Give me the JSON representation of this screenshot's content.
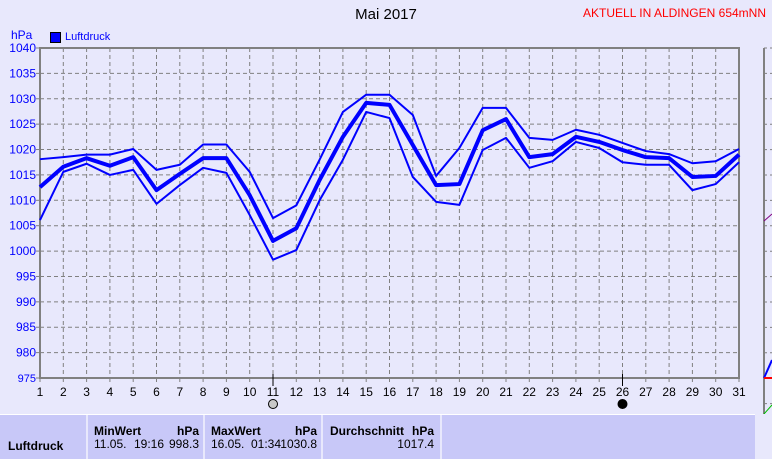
{
  "header": {
    "title": "Mai 2017",
    "station": "AKTUELL IN ALDINGEN 654mNN",
    "unit": "hPa"
  },
  "legend": {
    "label": "Luftdruck",
    "color": "#0000ff"
  },
  "chart_data": {
    "type": "line",
    "title": "Mai 2017",
    "ylabel": "hPa",
    "ylim": [
      975,
      1040
    ],
    "yticks": [
      975,
      980,
      985,
      990,
      995,
      1000,
      1005,
      1010,
      1015,
      1020,
      1025,
      1030,
      1035,
      1040
    ],
    "x": [
      1,
      2,
      3,
      4,
      5,
      6,
      7,
      8,
      9,
      10,
      11,
      12,
      13,
      14,
      15,
      16,
      17,
      18,
      19,
      20,
      21,
      22,
      23,
      24,
      25,
      26,
      27,
      28,
      29,
      30,
      31
    ],
    "grid": true,
    "legend_position": "top-left",
    "markers": [
      {
        "day": 11,
        "type": "hollow-circle"
      },
      {
        "day": 26,
        "type": "filled-circle"
      }
    ],
    "series": [
      {
        "name": "Luftdruck",
        "role": "max",
        "color": "#0000ff",
        "values": [
          1018.1,
          1018.5,
          1019,
          1019,
          1020.1,
          1016,
          1017,
          1021,
          1021,
          1015.6,
          1006.5,
          1009,
          1018,
          1027.4,
          1030.8,
          1030.8,
          1026.8,
          1014.8,
          1020.3,
          1028.2,
          1028.2,
          1022.3,
          1021.9,
          1023.9,
          1022.9,
          1021.3,
          1019.7,
          1019.1,
          1017.3,
          1017.7,
          1020.1
        ]
      },
      {
        "name": "Luftdruck",
        "role": "mean",
        "color": "#0000ff",
        "values": [
          1012.6,
          1016.6,
          1018.3,
          1016.8,
          1018.5,
          1012,
          1015.2,
          1018.3,
          1018.3,
          1011,
          1002,
          1004.5,
          1014,
          1022.5,
          1029.2,
          1028.8,
          1020.9,
          1013,
          1013.2,
          1023.8,
          1026,
          1018.5,
          1019.1,
          1022.5,
          1021.5,
          1019.9,
          1018.5,
          1018.3,
          1014.6,
          1014.8,
          1019
        ]
      },
      {
        "name": "Luftdruck",
        "role": "min",
        "color": "#0000ff",
        "values": [
          1006.1,
          1015.6,
          1017.2,
          1015,
          1016,
          1009.3,
          1013,
          1016.4,
          1015.4,
          1007.1,
          998.3,
          1000.2,
          1010,
          1018,
          1027.4,
          1026.2,
          1014.6,
          1009.7,
          1009.1,
          1019.9,
          1022.3,
          1016.4,
          1017.7,
          1021.5,
          1020.3,
          1017.5,
          1017,
          1017,
          1012,
          1013.2,
          1017.5
        ]
      }
    ]
  },
  "table": {
    "row_label": "Luftdruck",
    "min": {
      "header": "MinWert",
      "unit": "hPa",
      "date": "11.05.",
      "time": "19:16",
      "value": "998.3"
    },
    "max": {
      "header": "MaxWert",
      "unit": "hPa",
      "date": "16.05.",
      "time": "01:34",
      "value": "1030.8"
    },
    "avg": {
      "header": "Durchschnitt",
      "unit": "hPa",
      "value": "1017.4"
    }
  }
}
